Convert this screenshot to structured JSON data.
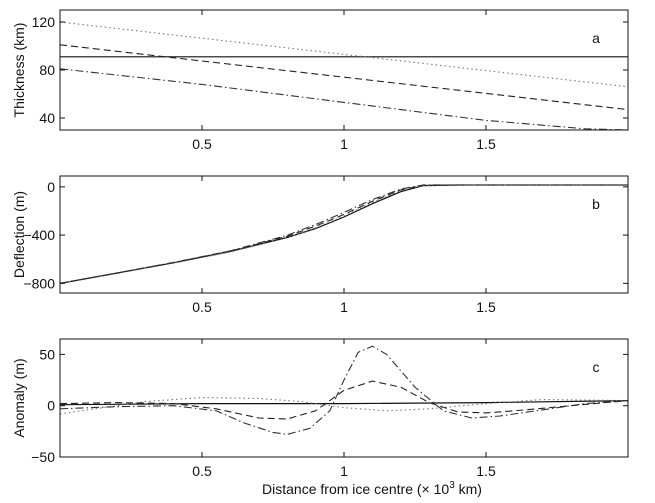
{
  "xlabel_prefix": "Distance from ice centre (",
  "xlabel_times": "×",
  "xlabel_base": " 10",
  "xlabel_exp": "3",
  "xlabel_suffix": " km)",
  "chart_data": [
    {
      "type": "line",
      "panel_label": "a",
      "ylabel": "Thickness (km)",
      "xlim": [
        0,
        2.0
      ],
      "ylim": [
        30,
        130
      ],
      "xticks": [
        0.5,
        1,
        1.5
      ],
      "xtick_labels": [
        "0.5",
        "1",
        "1.5"
      ],
      "yticks": [
        40,
        80,
        120
      ],
      "ytick_labels": [
        "40",
        "80",
        "120"
      ],
      "series": [
        {
          "style": "solid",
          "x": [
            0,
            2.0
          ],
          "y": [
            91,
            91
          ]
        },
        {
          "style": "dotted",
          "x": [
            0,
            2.0
          ],
          "y": [
            120,
            66
          ]
        },
        {
          "style": "dashed",
          "x": [
            0,
            2.0
          ],
          "y": [
            101,
            47
          ]
        },
        {
          "style": "dashdot",
          "x": [
            0,
            0.5,
            1.0,
            1.5,
            1.85,
            2.0
          ],
          "y": [
            81,
            68,
            53,
            38,
            31,
            30
          ]
        }
      ]
    },
    {
      "type": "line",
      "panel_label": "b",
      "ylabel": "Deflection (m)",
      "xlim": [
        0,
        2.0
      ],
      "ylim": [
        -880,
        90
      ],
      "xticks": [
        0.5,
        1,
        1.5
      ],
      "xtick_labels": [
        "0.5",
        "1",
        "1.5"
      ],
      "yticks": [
        -800,
        -400,
        0
      ],
      "ytick_labels": [
        "−800",
        "−400",
        "0"
      ],
      "series": [
        {
          "style": "solid",
          "x": [
            0,
            0.2,
            0.4,
            0.6,
            0.8,
            0.9,
            1.0,
            1.1,
            1.2,
            1.28,
            1.4,
            1.6,
            1.8,
            2.0
          ],
          "y": [
            -800,
            -715,
            -630,
            -535,
            -420,
            -345,
            -250,
            -140,
            -40,
            10,
            15,
            15,
            15,
            15
          ]
        },
        {
          "style": "dotted",
          "x": [
            0,
            0.2,
            0.4,
            0.6,
            0.8,
            0.9,
            1.0,
            1.1,
            1.2,
            1.28,
            1.4,
            1.6,
            1.8,
            2.0
          ],
          "y": [
            -800,
            -716,
            -632,
            -540,
            -422,
            -340,
            -242,
            -130,
            -30,
            12,
            15,
            15,
            15,
            15
          ]
        },
        {
          "style": "dashed",
          "x": [
            0,
            0.2,
            0.4,
            0.6,
            0.8,
            0.9,
            1.0,
            1.1,
            1.2,
            1.28,
            1.4,
            1.6,
            1.8,
            2.0
          ],
          "y": [
            -800,
            -715,
            -628,
            -532,
            -410,
            -325,
            -228,
            -120,
            -25,
            14,
            15,
            15,
            15,
            15
          ]
        },
        {
          "style": "dashdot",
          "x": [
            0,
            0.2,
            0.4,
            0.6,
            0.8,
            0.9,
            1.0,
            1.1,
            1.2,
            1.28,
            1.4,
            1.6,
            1.8,
            2.0
          ],
          "y": [
            -800,
            -714,
            -626,
            -530,
            -402,
            -312,
            -212,
            -106,
            -18,
            16,
            15,
            15,
            15,
            15
          ]
        }
      ]
    },
    {
      "type": "line",
      "panel_label": "c",
      "ylabel": "Anomaly (m)",
      "xlim": [
        0,
        2.0
      ],
      "ylim": [
        -50,
        65
      ],
      "xticks": [
        0.5,
        1,
        1.5
      ],
      "xtick_labels": [
        "0.5",
        "1",
        "1.5"
      ],
      "yticks": [
        -50,
        0,
        50
      ],
      "ytick_labels": [
        "−50",
        "0",
        "50"
      ],
      "series": [
        {
          "style": "solid",
          "x": [
            0,
            0.5,
            1.0,
            1.5,
            2.0
          ],
          "y": [
            1,
            2,
            2,
            3,
            5
          ]
        },
        {
          "style": "dotted",
          "x": [
            0,
            0.1,
            0.3,
            0.5,
            0.7,
            0.85,
            1.0,
            1.15,
            1.3,
            1.5,
            1.7,
            2.0
          ],
          "y": [
            -8,
            -4,
            4,
            8,
            7,
            4,
            -2,
            -5,
            -3,
            2,
            6,
            5
          ]
        },
        {
          "style": "dashed",
          "x": [
            0,
            0.2,
            0.4,
            0.55,
            0.7,
            0.8,
            0.9,
            1.0,
            1.1,
            1.2,
            1.3,
            1.4,
            1.5,
            1.6,
            1.8,
            2.0
          ],
          "y": [
            2,
            3,
            2,
            -3,
            -12,
            -13,
            -5,
            15,
            24,
            18,
            3,
            -6,
            -7,
            -5,
            0,
            5
          ]
        },
        {
          "style": "dashdot",
          "x": [
            0,
            0.2,
            0.4,
            0.55,
            0.65,
            0.75,
            0.8,
            0.88,
            0.95,
            1.0,
            1.05,
            1.1,
            1.15,
            1.25,
            1.35,
            1.45,
            1.55,
            1.7,
            1.85,
            2.0
          ],
          "y": [
            -3,
            -1,
            0,
            -5,
            -17,
            -26,
            -28,
            -22,
            -5,
            25,
            52,
            58,
            50,
            18,
            -5,
            -12,
            -10,
            -4,
            2,
            5
          ]
        }
      ]
    }
  ]
}
